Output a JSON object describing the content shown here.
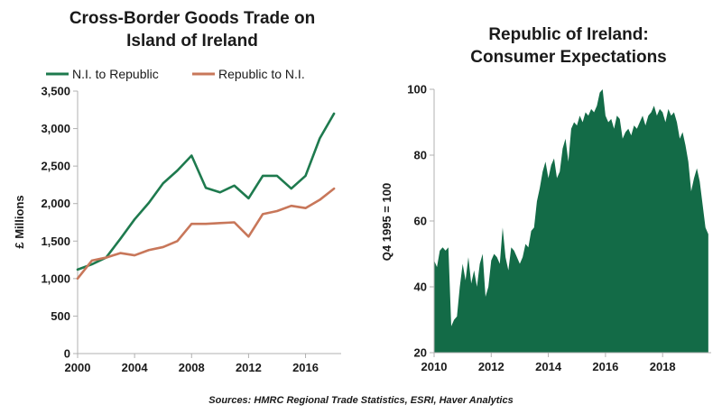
{
  "source_note": "Sources: HMRC Regional Trade Statistics, ESRI, Haver Analytics",
  "colors": {
    "green": "#1e7a4e",
    "orange": "#c8775a",
    "area_fill": "#136b47",
    "axis": "#b0b0b0"
  },
  "chart_data": [
    {
      "type": "line",
      "title_line1": "Cross-Border Goods Trade on",
      "title_line2": "Island of Ireland",
      "ylabel": "£ Millions",
      "xlabel": "",
      "xlim": [
        2000,
        2018.5
      ],
      "ylim": [
        0,
        3500
      ],
      "x_ticks": [
        "2000",
        "2004",
        "2008",
        "2012",
        "2016"
      ],
      "x_tick_values": [
        2000,
        2004,
        2008,
        2012,
        2016
      ],
      "y_ticks": [
        "0",
        "500",
        "1,000",
        "1,500",
        "2,000",
        "2,500",
        "3,000",
        "3,500"
      ],
      "y_tick_values": [
        0,
        500,
        1000,
        1500,
        2000,
        2500,
        3000,
        3500
      ],
      "grid": false,
      "legend_position": "top",
      "x": [
        2000,
        2001,
        2002,
        2003,
        2004,
        2005,
        2006,
        2007,
        2008,
        2009,
        2010,
        2011,
        2012,
        2013,
        2014,
        2015,
        2016,
        2017,
        2018
      ],
      "series": [
        {
          "name": "N.I. to Republic",
          "color": "#1e7a4e",
          "values": [
            1120,
            1190,
            1280,
            1530,
            1790,
            2010,
            2270,
            2440,
            2640,
            2210,
            2150,
            2240,
            2070,
            2370,
            2370,
            2200,
            2370,
            2870,
            3200
          ]
        },
        {
          "name": "Republic to N.I.",
          "color": "#c8775a",
          "values": [
            1000,
            1240,
            1280,
            1340,
            1310,
            1380,
            1420,
            1500,
            1730,
            1730,
            1740,
            1750,
            1560,
            1860,
            1900,
            1970,
            1940,
            2050,
            2200
          ]
        }
      ]
    },
    {
      "type": "area",
      "title_line1": "Republic of Ireland:",
      "title_line2": "Consumer Expectations",
      "ylabel": "Q4 1995 = 100",
      "xlabel": "",
      "xlim": [
        2010,
        2019.7
      ],
      "ylim": [
        20,
        100
      ],
      "x_ticks": [
        "2010",
        "2012",
        "2014",
        "2016",
        "2018"
      ],
      "x_tick_values": [
        2010,
        2012,
        2014,
        2016,
        2018
      ],
      "y_ticks": [
        "20",
        "40",
        "60",
        "80",
        "100"
      ],
      "y_tick_values": [
        20,
        40,
        60,
        80,
        100
      ],
      "grid": false,
      "color": "#136b47",
      "x": [
        2010.0,
        2010.1,
        2010.2,
        2010.3,
        2010.4,
        2010.5,
        2010.6,
        2010.7,
        2010.8,
        2010.9,
        2011.0,
        2011.1,
        2011.2,
        2011.3,
        2011.4,
        2011.5,
        2011.6,
        2011.7,
        2011.8,
        2011.9,
        2012.0,
        2012.1,
        2012.2,
        2012.3,
        2012.4,
        2012.5,
        2012.6,
        2012.7,
        2012.8,
        2012.9,
        2013.0,
        2013.1,
        2013.2,
        2013.3,
        2013.4,
        2013.5,
        2013.6,
        2013.7,
        2013.8,
        2013.9,
        2014.0,
        2014.1,
        2014.2,
        2014.3,
        2014.4,
        2014.5,
        2014.6,
        2014.7,
        2014.8,
        2014.9,
        2015.0,
        2015.1,
        2015.2,
        2015.3,
        2015.4,
        2015.5,
        2015.6,
        2015.7,
        2015.8,
        2015.9,
        2016.0,
        2016.1,
        2016.2,
        2016.3,
        2016.4,
        2016.5,
        2016.6,
        2016.7,
        2016.8,
        2016.9,
        2017.0,
        2017.1,
        2017.2,
        2017.3,
        2017.4,
        2017.5,
        2017.6,
        2017.7,
        2017.8,
        2017.9,
        2018.0,
        2018.1,
        2018.2,
        2018.3,
        2018.4,
        2018.5,
        2018.6,
        2018.7,
        2018.8,
        2018.9,
        2019.0,
        2019.1,
        2019.2,
        2019.3,
        2019.4,
        2019.5,
        2019.6
      ],
      "values": [
        48,
        46,
        51,
        52,
        51,
        52,
        28,
        30,
        31,
        40,
        47,
        42,
        49,
        41,
        45,
        40,
        47,
        50,
        37,
        40,
        48,
        50,
        49,
        47,
        58,
        49,
        45,
        52,
        51,
        49,
        47,
        49,
        53,
        52,
        57,
        58,
        66,
        70,
        75,
        78,
        73,
        77,
        79,
        73,
        75,
        82,
        85,
        78,
        88,
        90,
        89,
        92,
        90,
        93,
        92,
        94,
        93,
        95,
        99,
        100,
        92,
        90,
        91,
        88,
        92,
        91,
        85,
        87,
        88,
        86,
        89,
        88,
        90,
        92,
        89,
        92,
        93,
        95,
        92,
        94,
        93,
        90,
        94,
        92,
        93,
        90,
        85,
        87,
        83,
        78,
        69,
        73,
        76,
        72,
        65,
        58,
        56
      ]
    }
  ]
}
